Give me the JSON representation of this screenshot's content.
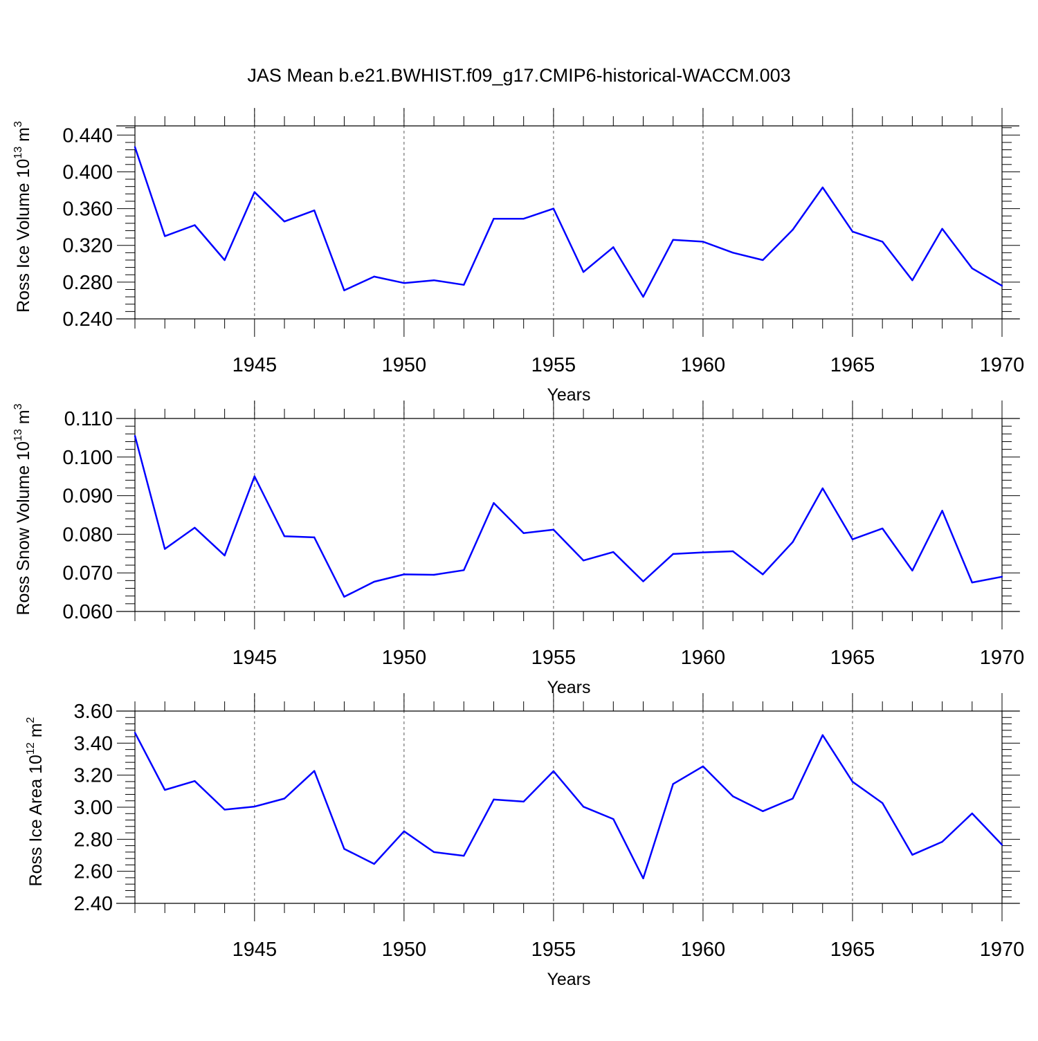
{
  "title": "JAS Mean b.e21.BWHIST.f09_g17.CMIP6-historical-WACCM.003",
  "colors": {
    "series": "#0000ff",
    "axis": "#000000",
    "grid": "#555555"
  },
  "chart_data": [
    {
      "type": "line",
      "xlabel": "Years",
      "ylabel": "Ross Ice Volume 10",
      "ylabel_exp": "13",
      "ylabel_unit": " m",
      "ylabel_unit_exp": "3",
      "xlim": [
        1941,
        1970
      ],
      "ylim": [
        0.24,
        0.45
      ],
      "xticks": [
        1945,
        1950,
        1955,
        1960,
        1965,
        1970
      ],
      "xtick_labels": [
        "1945",
        "1950",
        "1955",
        "1960",
        "1965",
        "1970"
      ],
      "yticks": [
        0.24,
        0.28,
        0.32,
        0.36,
        0.4,
        0.44
      ],
      "ytick_labels": [
        "0.240",
        "0.280",
        "0.320",
        "0.360",
        "0.400",
        "0.440"
      ],
      "grid": "vertical dashed at major x ticks",
      "x": [
        1941,
        1942,
        1943,
        1944,
        1945,
        1946,
        1947,
        1948,
        1949,
        1950,
        1951,
        1952,
        1953,
        1954,
        1955,
        1956,
        1957,
        1958,
        1959,
        1960,
        1961,
        1962,
        1963,
        1964,
        1965,
        1966,
        1967,
        1968,
        1969,
        1970
      ],
      "values": [
        0.427,
        0.33,
        0.342,
        0.304,
        0.378,
        0.346,
        0.358,
        0.271,
        0.286,
        0.279,
        0.282,
        0.277,
        0.349,
        0.349,
        0.36,
        0.291,
        0.318,
        0.264,
        0.326,
        0.324,
        0.312,
        0.304,
        0.337,
        0.383,
        0.335,
        0.324,
        0.282,
        0.338,
        0.295,
        0.276
      ]
    },
    {
      "type": "line",
      "xlabel": "Years",
      "ylabel": "Ross Snow Volume 10",
      "ylabel_exp": "13",
      "ylabel_unit": " m",
      "ylabel_unit_exp": "3",
      "xlim": [
        1941,
        1970
      ],
      "ylim": [
        0.06,
        0.11
      ],
      "xticks": [
        1945,
        1950,
        1955,
        1960,
        1965,
        1970
      ],
      "xtick_labels": [
        "1945",
        "1950",
        "1955",
        "1960",
        "1965",
        "1970"
      ],
      "yticks": [
        0.06,
        0.07,
        0.08,
        0.09,
        0.1,
        0.11
      ],
      "ytick_labels": [
        "0.060",
        "0.070",
        "0.080",
        "0.090",
        "0.100",
        "0.110"
      ],
      "grid": "vertical dashed at major x ticks",
      "x": [
        1941,
        1942,
        1943,
        1944,
        1945,
        1946,
        1947,
        1948,
        1949,
        1950,
        1951,
        1952,
        1953,
        1954,
        1955,
        1956,
        1957,
        1958,
        1959,
        1960,
        1961,
        1962,
        1963,
        1964,
        1965,
        1966,
        1967,
        1968,
        1969,
        1970
      ],
      "values": [
        0.1055,
        0.0762,
        0.0817,
        0.0745,
        0.095,
        0.0795,
        0.0792,
        0.0638,
        0.0677,
        0.0696,
        0.0695,
        0.0707,
        0.0881,
        0.0803,
        0.0812,
        0.0732,
        0.0754,
        0.0678,
        0.0749,
        0.0753,
        0.0756,
        0.0696,
        0.078,
        0.0919,
        0.0787,
        0.0815,
        0.0706,
        0.0861,
        0.0675,
        0.069
      ]
    },
    {
      "type": "line",
      "xlabel": "Years",
      "ylabel": "Ross Ice Area 10",
      "ylabel_exp": "12",
      "ylabel_unit": " m",
      "ylabel_unit_exp": "2",
      "xlim": [
        1941,
        1970
      ],
      "ylim": [
        2.4,
        3.6
      ],
      "xticks": [
        1945,
        1950,
        1955,
        1960,
        1965,
        1970
      ],
      "xtick_labels": [
        "1945",
        "1950",
        "1955",
        "1960",
        "1965",
        "1970"
      ],
      "yticks": [
        2.4,
        2.6,
        2.8,
        3.0,
        3.2,
        3.4,
        3.6
      ],
      "ytick_labels": [
        "2.40",
        "2.60",
        "2.80",
        "3.00",
        "3.20",
        "3.40",
        "3.60"
      ],
      "grid": "vertical dashed at major x ticks",
      "x": [
        1941,
        1942,
        1943,
        1944,
        1945,
        1946,
        1947,
        1948,
        1949,
        1950,
        1951,
        1952,
        1953,
        1954,
        1955,
        1956,
        1957,
        1958,
        1959,
        1960,
        1961,
        1962,
        1963,
        1964,
        1965,
        1966,
        1967,
        1968,
        1969,
        1970
      ],
      "values": [
        3.465,
        3.108,
        3.163,
        2.985,
        3.004,
        3.054,
        3.226,
        2.74,
        2.646,
        2.85,
        2.72,
        2.697,
        3.048,
        3.035,
        3.225,
        3.003,
        2.926,
        2.556,
        3.145,
        3.255,
        3.068,
        2.975,
        3.054,
        3.45,
        3.159,
        3.026,
        2.703,
        2.784,
        2.961,
        2.765
      ]
    }
  ]
}
